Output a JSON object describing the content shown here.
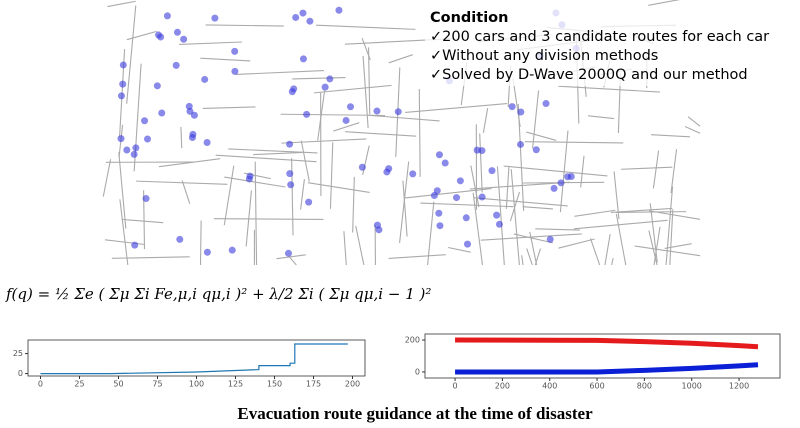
{
  "condition": {
    "title": "Condition",
    "items": [
      "✓200 cars and 3 candidate routes for each car",
      "✓Without any division methods",
      "✓Solved by D-Wave 2000Q and our method"
    ]
  },
  "formula": "f(q) = ½ Σe ( Σμ Σi Fe,μ,i qμ,i )² + λ/2 Σi ( Σμ qμ,i − 1 )²",
  "caption": "Evacuation route guidance at the time of disaster",
  "chart_data": [
    {
      "type": "line",
      "xlim": [
        -8,
        208
      ],
      "ylim": [
        -3,
        42
      ],
      "xticks": [
        0,
        25,
        50,
        75,
        100,
        125,
        150,
        175,
        200
      ],
      "yticks": [
        0,
        25
      ],
      "series": [
        {
          "color": "#1f77b4",
          "x": [
            0,
            45,
            100,
            140,
            140,
            160,
            160,
            163,
            163,
            197
          ],
          "values": [
            0,
            0,
            2,
            5,
            10,
            10,
            13,
            13,
            37,
            37
          ]
        }
      ]
    },
    {
      "type": "line",
      "xlim": [
        -127,
        1373
      ],
      "ylim": [
        -38,
        238
      ],
      "xticks": [
        0,
        200,
        400,
        600,
        800,
        1000,
        1200
      ],
      "yticks": [
        0,
        200
      ],
      "series": [
        {
          "color": "#e41a1c",
          "x": [
            0,
            600,
            800,
            1000,
            1200,
            1280
          ],
          "values": [
            200,
            198,
            190,
            180,
            165,
            158
          ]
        },
        {
          "color": "#0b1fd6",
          "x": [
            0,
            600,
            800,
            1000,
            1200,
            1280
          ],
          "values": [
            0,
            0,
            10,
            22,
            38,
            45
          ]
        }
      ]
    }
  ]
}
